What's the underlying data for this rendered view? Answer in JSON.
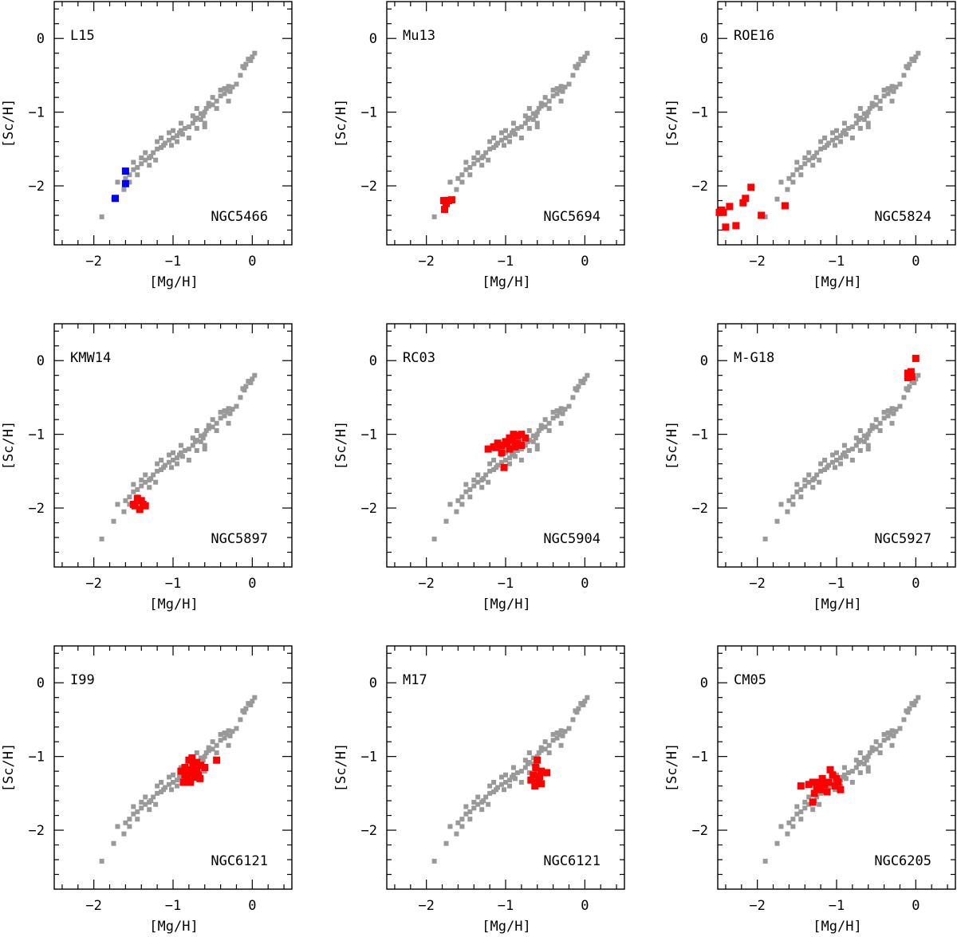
{
  "colors": {
    "reference": "#999999",
    "highlight": "#ff0000",
    "blue": "#0000ff"
  },
  "chart_data": [
    {
      "type": "scatter",
      "label": "L15",
      "cluster": "NGC5466",
      "xlabel": "[Mg/H]",
      "ylabel": "[Sc/H]",
      "xlim": [
        -2.5,
        0.5
      ],
      "ylim": [
        -2.8,
        0.5
      ],
      "xticks": [
        "−2",
        "−1",
        "0"
      ],
      "yticks": [
        "0",
        "−1",
        "−2"
      ],
      "highlight_color": "#0000ff",
      "points": [
        [
          -1.6,
          -1.8
        ],
        [
          -1.6,
          -1.97
        ],
        [
          -1.73,
          -2.17
        ]
      ]
    },
    {
      "type": "scatter",
      "label": "Mu13",
      "cluster": "NGC5694",
      "xlabel": "[Mg/H]",
      "ylabel": "[Sc/H]",
      "xlim": [
        -2.5,
        0.5
      ],
      "ylim": [
        -2.8,
        0.5
      ],
      "xticks": [
        "−2",
        "−1",
        "0"
      ],
      "yticks": [
        "0",
        "−1",
        "−2"
      ],
      "highlight_color": "#ff0000",
      "points": [
        [
          -1.78,
          -2.2
        ],
        [
          -1.72,
          -2.2
        ],
        [
          -1.68,
          -2.19
        ],
        [
          -1.77,
          -2.32
        ],
        [
          -1.75,
          -2.24
        ]
      ]
    },
    {
      "type": "scatter",
      "label": "ROE16",
      "cluster": "NGC5824",
      "xlabel": "[Mg/H]",
      "ylabel": "[Sc/H]",
      "xlim": [
        -2.5,
        0.5
      ],
      "ylim": [
        -2.8,
        0.5
      ],
      "xticks": [
        "−2",
        "−1",
        "0"
      ],
      "yticks": [
        "0",
        "−1",
        "−2"
      ],
      "highlight_color": "#ff0000",
      "points": [
        [
          -2.48,
          -2.36
        ],
        [
          -2.43,
          -2.36
        ],
        [
          -2.4,
          -2.56
        ],
        [
          -2.35,
          -2.28
        ],
        [
          -2.27,
          -2.54
        ],
        [
          -2.18,
          -2.23
        ],
        [
          -2.15,
          -2.17
        ],
        [
          -2.08,
          -2.02
        ],
        [
          -1.95,
          -2.4
        ],
        [
          -1.65,
          -2.27
        ],
        [
          -2.45,
          -2.33
        ]
      ]
    },
    {
      "type": "scatter",
      "label": "KMW14",
      "cluster": "NGC5897",
      "xlabel": "[Mg/H]",
      "ylabel": "[Sc/H]",
      "xlim": [
        -2.5,
        0.5
      ],
      "ylim": [
        -2.8,
        0.5
      ],
      "xticks": [
        "−2",
        "−1",
        "0"
      ],
      "yticks": [
        "0",
        "−1",
        "−2"
      ],
      "highlight_color": "#ff0000",
      "points": [
        [
          -1.5,
          -1.95
        ],
        [
          -1.45,
          -1.87
        ],
        [
          -1.4,
          -1.9
        ],
        [
          -1.35,
          -1.97
        ],
        [
          -1.42,
          -2.02
        ],
        [
          -1.48,
          -1.97
        ],
        [
          -1.38,
          -1.95
        ]
      ]
    },
    {
      "type": "scatter",
      "label": "RC03",
      "cluster": "NGC5904",
      "xlabel": "[Mg/H]",
      "ylabel": "[Sc/H]",
      "xlim": [
        -2.5,
        0.5
      ],
      "ylim": [
        -2.8,
        0.5
      ],
      "xticks": [
        "−2",
        "−1",
        "0"
      ],
      "yticks": [
        "0",
        "−1",
        "−2"
      ],
      "highlight_color": "#ff0000",
      "points": [
        [
          -1.22,
          -1.2
        ],
        [
          -1.15,
          -1.17
        ],
        [
          -1.1,
          -1.12
        ],
        [
          -1.05,
          -1.15
        ],
        [
          -1.0,
          -1.1
        ],
        [
          -0.95,
          -1.05
        ],
        [
          -0.9,
          -1.0
        ],
        [
          -0.85,
          -1.02
        ],
        [
          -0.8,
          -1.0
        ],
        [
          -0.75,
          -1.05
        ],
        [
          -0.8,
          -1.15
        ],
        [
          -0.88,
          -1.17
        ],
        [
          -0.95,
          -1.2
        ],
        [
          -1.05,
          -1.25
        ],
        [
          -1.12,
          -1.18
        ],
        [
          -1.02,
          -1.45
        ],
        [
          -0.98,
          -1.13
        ],
        [
          -0.92,
          -1.08
        ],
        [
          -0.85,
          -1.12
        ]
      ]
    },
    {
      "type": "scatter",
      "label": "M-G18",
      "cluster": "NGC5927",
      "xlabel": "[Mg/H]",
      "ylabel": "[Sc/H]",
      "xlim": [
        -2.5,
        0.5
      ],
      "ylim": [
        -2.8,
        0.5
      ],
      "xticks": [
        "−2",
        "−1",
        "0"
      ],
      "yticks": [
        "0",
        "−1",
        "−2"
      ],
      "highlight_color": "#ff0000",
      "points": [
        [
          0.0,
          0.03
        ],
        [
          -0.1,
          -0.17
        ],
        [
          -0.08,
          -0.2
        ],
        [
          -0.05,
          -0.22
        ],
        [
          -0.1,
          -0.23
        ],
        [
          -0.06,
          -0.15
        ]
      ]
    },
    {
      "type": "scatter",
      "label": "I99",
      "cluster": "NGC6121",
      "xlabel": "[Mg/H]",
      "ylabel": "[Sc/H]",
      "xlim": [
        -2.5,
        0.5
      ],
      "ylim": [
        -2.8,
        0.5
      ],
      "xticks": [
        "−2",
        "−1",
        "0"
      ],
      "yticks": [
        "0",
        "−1",
        "−2"
      ],
      "highlight_color": "#ff0000",
      "points": [
        [
          -0.9,
          -1.2
        ],
        [
          -0.85,
          -1.15
        ],
        [
          -0.8,
          -1.05
        ],
        [
          -0.78,
          -1.22
        ],
        [
          -0.75,
          -1.1
        ],
        [
          -0.72,
          -1.18
        ],
        [
          -0.7,
          -1.08
        ],
        [
          -0.68,
          -1.25
        ],
        [
          -0.82,
          -1.3
        ],
        [
          -0.78,
          -1.35
        ],
        [
          -0.85,
          -1.25
        ],
        [
          -0.65,
          -1.12
        ],
        [
          -0.6,
          -1.15
        ],
        [
          -0.45,
          -1.05
        ],
        [
          -0.73,
          -1.28
        ],
        [
          -0.87,
          -1.35
        ],
        [
          -0.7,
          -1.2
        ],
        [
          -0.8,
          -1.18
        ],
        [
          -0.76,
          -1.02
        ],
        [
          -0.66,
          -1.3
        ]
      ]
    },
    {
      "type": "scatter",
      "label": "M17",
      "cluster": "NGC6121",
      "xlabel": "[Mg/H]",
      "ylabel": "[Sc/H]",
      "xlim": [
        -2.5,
        0.5
      ],
      "ylim": [
        -2.8,
        0.5
      ],
      "xticks": [
        "−2",
        "−1",
        "0"
      ],
      "yticks": [
        "0",
        "−1",
        "−2"
      ],
      "highlight_color": "#ff0000",
      "points": [
        [
          -0.6,
          -1.05
        ],
        [
          -0.62,
          -1.15
        ],
        [
          -0.55,
          -1.2
        ],
        [
          -0.65,
          -1.25
        ],
        [
          -0.58,
          -1.3
        ],
        [
          -0.68,
          -1.32
        ],
        [
          -0.6,
          -1.35
        ],
        [
          -0.55,
          -1.37
        ],
        [
          -0.48,
          -1.22
        ],
        [
          -0.63,
          -1.4
        ],
        [
          -0.57,
          -1.27
        ]
      ]
    },
    {
      "type": "scatter",
      "label": "CM05",
      "cluster": "NGC6205",
      "xlabel": "[Mg/H]",
      "ylabel": "[Sc/H]",
      "xlim": [
        -2.5,
        0.5
      ],
      "ylim": [
        -2.8,
        0.5
      ],
      "xticks": [
        "−2",
        "−1",
        "0"
      ],
      "yticks": [
        "0",
        "−1",
        "−2"
      ],
      "highlight_color": "#ff0000",
      "points": [
        [
          -1.45,
          -1.4
        ],
        [
          -1.35,
          -1.38
        ],
        [
          -1.3,
          -1.35
        ],
        [
          -1.28,
          -1.5
        ],
        [
          -1.25,
          -1.42
        ],
        [
          -1.2,
          -1.45
        ],
        [
          -1.15,
          -1.38
        ],
        [
          -1.1,
          -1.35
        ],
        [
          -1.05,
          -1.25
        ],
        [
          -1.02,
          -1.4
        ],
        [
          -0.98,
          -1.35
        ],
        [
          -0.95,
          -1.45
        ],
        [
          -1.08,
          -1.18
        ],
        [
          -1.18,
          -1.3
        ],
        [
          -1.3,
          -1.62
        ],
        [
          -1.12,
          -1.48
        ],
        [
          -1.0,
          -1.3
        ],
        [
          -1.22,
          -1.35
        ]
      ]
    }
  ],
  "reference_points": [
    [
      0.03,
      -0.2
    ],
    [
      0.0,
      -0.25
    ],
    [
      -0.02,
      -0.3
    ],
    [
      -0.05,
      -0.28
    ],
    [
      -0.08,
      -0.35
    ],
    [
      -0.1,
      -0.4
    ],
    [
      -0.12,
      -0.38
    ],
    [
      -0.15,
      -0.5
    ],
    [
      -0.2,
      -0.62
    ],
    [
      -0.25,
      -0.66
    ],
    [
      -0.3,
      -0.65
    ],
    [
      -0.32,
      -0.7
    ],
    [
      -0.35,
      -0.75
    ],
    [
      -0.4,
      -0.78
    ],
    [
      -0.45,
      -0.85
    ],
    [
      -0.5,
      -0.9
    ],
    [
      -0.55,
      -0.92
    ],
    [
      -0.58,
      -0.95
    ],
    [
      -0.6,
      -1.0
    ],
    [
      -0.62,
      -1.05
    ],
    [
      -0.65,
      -1.02
    ],
    [
      -0.7,
      -1.08
    ],
    [
      -0.72,
      -1.1
    ],
    [
      -0.75,
      -1.15
    ],
    [
      -0.8,
      -1.2
    ],
    [
      -0.85,
      -1.22
    ],
    [
      -0.9,
      -1.25
    ],
    [
      -0.92,
      -1.28
    ],
    [
      -0.95,
      -1.32
    ],
    [
      -1.0,
      -1.35
    ],
    [
      -1.05,
      -1.38
    ],
    [
      -1.1,
      -1.42
    ],
    [
      -1.12,
      -1.45
    ],
    [
      -1.15,
      -1.48
    ],
    [
      -1.2,
      -1.5
    ],
    [
      -1.25,
      -1.55
    ],
    [
      -1.28,
      -1.6
    ],
    [
      -1.3,
      -1.62
    ],
    [
      -1.35,
      -1.65
    ],
    [
      -1.4,
      -1.7
    ],
    [
      -1.45,
      -1.75
    ],
    [
      -1.5,
      -1.78
    ],
    [
      -1.55,
      -1.85
    ],
    [
      -1.6,
      -1.9
    ],
    [
      -1.7,
      -1.95
    ],
    [
      -1.75,
      -2.18
    ],
    [
      -1.9,
      -2.42
    ],
    [
      -0.5,
      -0.8
    ],
    [
      -0.55,
      -0.88
    ],
    [
      -0.7,
      -0.95
    ],
    [
      -0.75,
      -1.05
    ],
    [
      -0.9,
      -1.15
    ],
    [
      -1.0,
      -1.25
    ],
    [
      -1.05,
      -1.28
    ],
    [
      -1.15,
      -1.35
    ],
    [
      -1.2,
      -1.4
    ],
    [
      -1.35,
      -1.55
    ],
    [
      -1.4,
      -1.62
    ],
    [
      -1.5,
      -1.68
    ],
    [
      -1.22,
      -1.65
    ],
    [
      -1.3,
      -1.72
    ],
    [
      -1.45,
      -1.85
    ],
    [
      -1.55,
      -1.95
    ],
    [
      -1.62,
      -2.05
    ],
    [
      -0.88,
      -1.3
    ],
    [
      -0.95,
      -1.4
    ],
    [
      -1.02,
      -1.45
    ],
    [
      -0.65,
      -1.1
    ],
    [
      -0.6,
      -1.15
    ],
    [
      -0.4,
      -0.7
    ],
    [
      -0.35,
      -0.68
    ],
    [
      -0.28,
      -0.72
    ],
    [
      -0.3,
      -0.85
    ],
    [
      -0.45,
      -0.95
    ],
    [
      -0.6,
      -1.2
    ],
    [
      -0.7,
      -1.22
    ],
    [
      -0.8,
      -1.35
    ]
  ]
}
